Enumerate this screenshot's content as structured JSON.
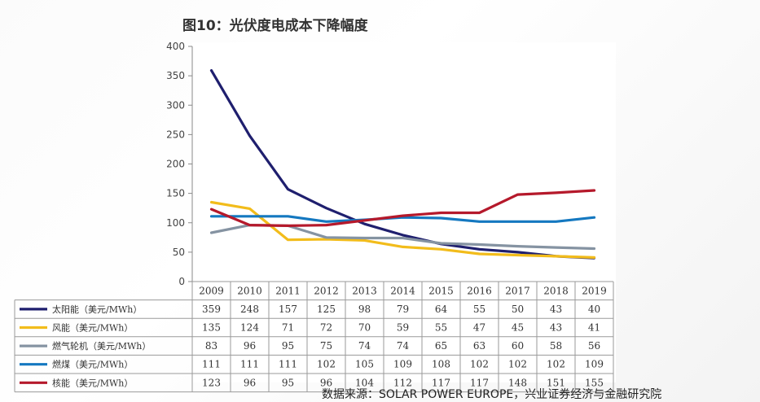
{
  "title": "图10：光伏度电成本下降幅度",
  "source": "数据来源：SOLAR POWER EUROPE，兴业证券经济与金融研究院",
  "chart_data": {
    "type": "line",
    "categories": [
      "2009",
      "2010",
      "2011",
      "2012",
      "2013",
      "2014",
      "2015",
      "2016",
      "2017",
      "2018",
      "2019"
    ],
    "yticks": [
      0,
      50,
      100,
      150,
      200,
      250,
      300,
      350,
      400
    ],
    "ylim": [
      0,
      400
    ],
    "grid": false,
    "legend": "data-table-below",
    "series": [
      {
        "name": "太阳能（美元/MWh）",
        "color": "#1f1f6e",
        "values": [
          359,
          248,
          157,
          125,
          98,
          79,
          64,
          55,
          50,
          43,
          40
        ]
      },
      {
        "name": "风能（美元/MWh）",
        "color": "#f2bc1b",
        "values": [
          135,
          124,
          71,
          72,
          70,
          59,
          55,
          47,
          45,
          43,
          41
        ]
      },
      {
        "name": "燃气轮机（美元/MWh）",
        "color": "#8593a2",
        "values": [
          83,
          96,
          95,
          75,
          74,
          74,
          65,
          63,
          60,
          58,
          56
        ]
      },
      {
        "name": "燃煤（美元/MWh）",
        "color": "#1478c0",
        "values": [
          111,
          111,
          111,
          102,
          105,
          109,
          108,
          102,
          102,
          102,
          109
        ]
      },
      {
        "name": "核能（美元/MWh）",
        "color": "#b5192b",
        "values": [
          123,
          96,
          95,
          96,
          104,
          112,
          117,
          117,
          148,
          151,
          155
        ]
      }
    ]
  }
}
